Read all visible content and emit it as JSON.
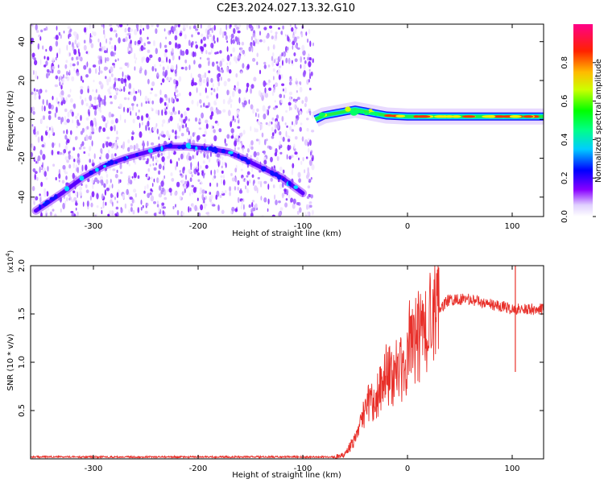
{
  "figure": {
    "title": "C2E3.2024.027.13.32.G10"
  },
  "chart_data": [
    {
      "type": "heatmap",
      "description_of_content": "spectrogram",
      "xlabel": "Height of straight line (km)",
      "ylabel": "Frequency (Hz)",
      "xlim": [
        -360,
        130
      ],
      "ylim": [
        -50,
        49
      ],
      "xticks": [
        -300,
        -200,
        -100,
        0,
        100
      ],
      "yticks": [
        -40,
        -20,
        0,
        20,
        40
      ],
      "colorbar": {
        "label": "Normalized spectral amplitude",
        "range": [
          0,
          1
        ],
        "ticks": [
          "0.0",
          "0.2",
          "0.4",
          "0.6",
          "0.8"
        ],
        "colormap": [
          "#ffffff",
          "#8800ff",
          "#0000ff",
          "#00ffff",
          "#00ff00",
          "#ffff00",
          "#ff8800",
          "#ff0000",
          "#ff0080"
        ]
      },
      "noise_region_x_range": [
        -360,
        -90
      ],
      "arc_feature": {
        "points": [
          [
            -355,
            -47
          ],
          [
            -330,
            -38
          ],
          [
            -310,
            -30
          ],
          [
            -290,
            -24
          ],
          [
            -270,
            -20
          ],
          [
            -250,
            -17
          ],
          [
            -230,
            -14
          ],
          [
            -210,
            -14
          ],
          [
            -190,
            -15
          ],
          [
            -170,
            -17
          ],
          [
            -150,
            -22
          ],
          [
            -135,
            -26
          ],
          [
            -120,
            -30
          ],
          [
            -105,
            -36
          ],
          [
            -100,
            -38
          ]
        ]
      },
      "carrier_feature": {
        "points": [
          [
            -88,
            0
          ],
          [
            -80,
            2
          ],
          [
            -70,
            3
          ],
          [
            -60,
            4
          ],
          [
            -50,
            5
          ],
          [
            -40,
            4
          ],
          [
            -30,
            3
          ],
          [
            -20,
            2
          ],
          [
            0,
            1.5
          ],
          [
            30,
            1.5
          ],
          [
            60,
            1.5
          ],
          [
            90,
            1.5
          ],
          [
            130,
            1.5
          ]
        ]
      }
    },
    {
      "type": "line",
      "xlabel": "Height of straight line (km)",
      "ylabel": "SNR (10 * v/v)",
      "y_multiplier_label": "(x10",
      "y_multiplier_exp": "4",
      "xlim": [
        -360,
        130
      ],
      "ylim": [
        0,
        2.0
      ],
      "xticks": [
        -300,
        -200,
        -100,
        0,
        100
      ],
      "yticks": [
        "0.5",
        "1.0",
        "1.5",
        "2.0"
      ],
      "color": "#e8302a",
      "series": [
        {
          "x": [
            -360,
            -300,
            -200,
            -100,
            -70,
            -60,
            -50,
            -45,
            -40,
            -35,
            -30,
            -25,
            -20,
            -15,
            -10,
            -5,
            0,
            5,
            10,
            15,
            20,
            25,
            30,
            35,
            40,
            50,
            60,
            70,
            80,
            90,
            100,
            110,
            120,
            130
          ],
          "y": [
            0.0,
            0.0,
            0.0,
            0.0,
            0.0,
            0.05,
            0.2,
            0.35,
            0.55,
            0.6,
            0.7,
            0.75,
            0.85,
            0.9,
            0.95,
            1.0,
            1.1,
            1.2,
            1.3,
            1.38,
            1.45,
            1.5,
            1.55,
            1.6,
            1.65,
            1.65,
            1.65,
            1.62,
            1.6,
            1.58,
            1.55,
            1.55,
            1.55,
            1.55
          ]
        }
      ],
      "spike_feature": {
        "x": 103,
        "y_top": 2.0,
        "y_bottom": 0.9
      }
    }
  ]
}
